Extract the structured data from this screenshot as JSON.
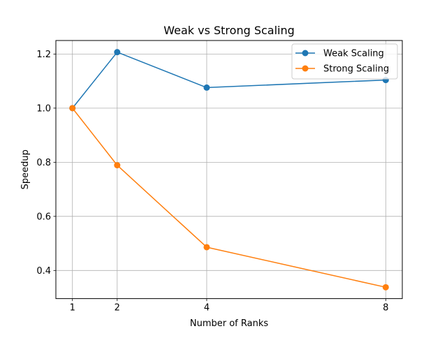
{
  "chart_data": {
    "type": "line",
    "title": "Weak vs Strong Scaling",
    "xlabel": "Number of Ranks",
    "ylabel": "Speedup",
    "x": [
      1,
      2,
      4,
      8
    ],
    "xticks": [
      1,
      2,
      4,
      8
    ],
    "yticks": [
      0.4,
      0.6,
      0.8,
      1.0,
      1.2
    ],
    "ytick_labels": [
      "0.4",
      "0.6",
      "0.8",
      "1.0",
      "1.2"
    ],
    "xlim": [
      0.63,
      8.37
    ],
    "ylim": [
      0.296,
      1.25
    ],
    "grid": true,
    "legend_position": "top-right",
    "series": [
      {
        "name": "Weak Scaling",
        "color": "#1f77b4",
        "marker": "circle",
        "values": [
          1.0,
          1.207,
          1.076,
          1.104
        ]
      },
      {
        "name": "Strong Scaling",
        "color": "#ff7f0e",
        "marker": "circle",
        "values": [
          1.0,
          0.789,
          0.486,
          0.338
        ]
      }
    ]
  }
}
